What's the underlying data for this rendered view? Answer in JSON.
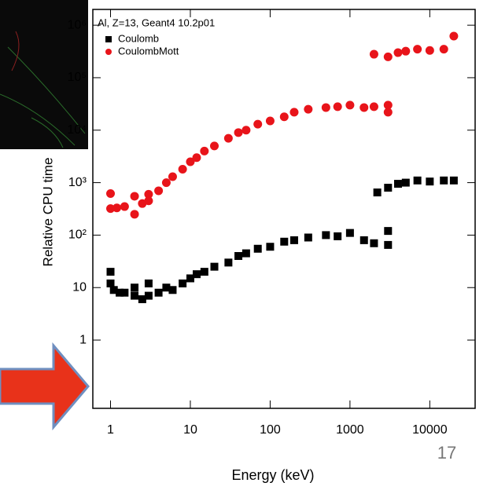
{
  "chart_data": {
    "type": "scatter",
    "title": "Al, Z=13, Geant4 10.2p01",
    "x_label": "Energy (keV)",
    "y_label": "Relative CPU time",
    "x_log": true,
    "y_log": true,
    "legend": "upper left",
    "xlim": [
      0.6,
      37000
    ],
    "ylim": [
      0.05,
      2000000
    ],
    "xticks": [
      1,
      10,
      100,
      1000,
      10000
    ],
    "yticks": [
      1,
      10,
      {
        "value": 100,
        "label": "10²"
      },
      {
        "value": 1000,
        "label": "10³"
      },
      {
        "value": 10000,
        "label": "10⁴"
      },
      {
        "value": 100000,
        "label": "10⁵"
      },
      {
        "value": 1000000,
        "label": "10⁶"
      }
    ],
    "series": [
      {
        "name": "Coulomb",
        "color": "#000000",
        "marker": "square",
        "x": [
          1,
          1,
          1.1,
          1.3,
          1.5,
          2,
          2,
          2.5,
          3,
          3,
          4,
          5,
          6,
          8,
          10,
          12,
          15,
          20,
          30,
          40,
          50,
          70,
          100,
          150,
          200,
          300,
          500,
          700,
          1000,
          1500,
          2000,
          3000,
          3000,
          2200,
          3000,
          4000,
          5000,
          7000,
          10000,
          15000,
          20000
        ],
        "values": [
          20,
          12,
          9,
          8,
          8,
          7,
          10,
          6,
          7,
          12,
          8,
          10,
          9,
          12,
          15,
          18,
          20,
          25,
          30,
          40,
          45,
          55,
          60,
          75,
          80,
          90,
          100,
          95,
          110,
          80,
          70,
          120,
          65,
          650,
          800,
          950,
          1000,
          1100,
          1050,
          1100,
          1100
        ]
      },
      {
        "name": "CoulombMott",
        "color": "#e8141a",
        "marker": "circle",
        "x": [
          1,
          1,
          1.2,
          1.5,
          2,
          2,
          2.5,
          3,
          3,
          4,
          5,
          6,
          8,
          10,
          12,
          15,
          20,
          30,
          40,
          50,
          70,
          100,
          150,
          200,
          300,
          500,
          700,
          1000,
          1500,
          2000,
          3000,
          3000,
          2000,
          3000,
          4000,
          5000,
          7000,
          10000,
          15000,
          20000
        ],
        "values": [
          620,
          320,
          330,
          350,
          250,
          550,
          400,
          450,
          600,
          700,
          1000,
          1300,
          1800,
          2500,
          3000,
          4000,
          5000,
          7000,
          9000,
          10000,
          13000,
          15000,
          18000,
          22000,
          25000,
          27000,
          28000,
          30000,
          27000,
          28000,
          30000,
          22000,
          280000,
          250000,
          300000,
          320000,
          350000,
          330000,
          350000,
          620000
        ]
      }
    ]
  },
  "page_number": "17"
}
